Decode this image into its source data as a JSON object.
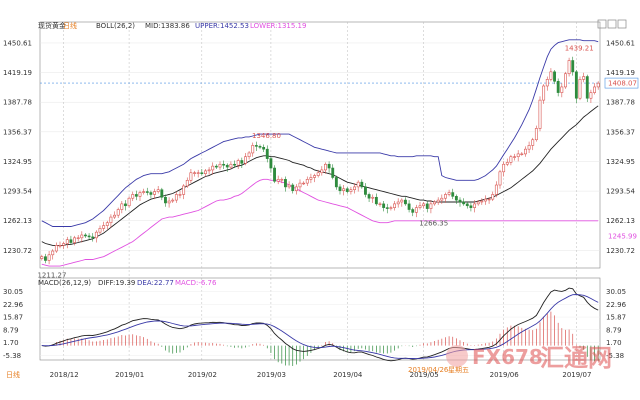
{
  "header": {
    "instrument": "现货黄金",
    "period_badge": "日线",
    "boll_label": "BOLL(26,2)",
    "mid_label": "MID:1383.86",
    "upper_label": "UPPER:1452.53",
    "lower_label": "LOWER:1315.19",
    "macd_label": "MACD(26,12,9)",
    "diff_label": "DIFF:19.39",
    "dea_label": "DEA:22.77",
    "macd_value_label": "MACD:-6.76",
    "footer_period": "日线",
    "hover_date": "2019/04/26",
    "hover_weekday": "星期五"
  },
  "watermark": {
    "code": "FX678",
    "name": "汇通网"
  },
  "colors": {
    "up": "#d9534f",
    "down": "#2e8b3d",
    "mid": "#222222",
    "upper": "#3a3aa8",
    "lower": "#e050e0",
    "diff": "#222222",
    "dea": "#3a3aa8",
    "last_price": "#4a90e2",
    "annotation": "#d9534f"
  },
  "chart_data": {
    "type": "candlestick",
    "y_ticks": [
      "1450.61",
      "1419.19",
      "1387.78",
      "1356.37",
      "1324.95",
      "1293.54",
      "1262.13",
      "1230.72"
    ],
    "y_range": [
      1212,
      1458
    ],
    "macd_ticks": [
      "30.05",
      "22.96",
      "15.87",
      "8.79",
      "1.70",
      "-5.38"
    ],
    "macd_range": [
      -8,
      32
    ],
    "x_labels": [
      {
        "label": "2018/12",
        "i": 6
      },
      {
        "label": "2019/01",
        "i": 24
      },
      {
        "label": "2019/02",
        "i": 44
      },
      {
        "label": "2019/03",
        "i": 63
      },
      {
        "label": "2019/04",
        "i": 84
      },
      {
        "label": "2019/05",
        "i": 105
      },
      {
        "label": "2019/06",
        "i": 127
      },
      {
        "label": "2019/07",
        "i": 147
      }
    ],
    "annotations": {
      "high_1": "1439.21",
      "high_1_i": 146,
      "high_1_v": 1439.21,
      "high_2": "1346.80",
      "high_2_i": 60,
      "high_2_v": 1346.8,
      "low_1": "1266.35",
      "low_1_i": 106,
      "low_1_v": 1266.35,
      "low_2": "1211.27",
      "low_2_i": 1,
      "low_2_v": 1211.27
    },
    "last_price": "1408.07",
    "last_price_value": 1408.07,
    "lower_label_value": "1245.99",
    "lower_last_value": 1245.99,
    "close": [
      1224,
      1220,
      1226,
      1230,
      1236,
      1236,
      1238,
      1242,
      1239,
      1244,
      1244,
      1247,
      1246,
      1245,
      1244,
      1250,
      1254,
      1257,
      1260,
      1266,
      1268,
      1274,
      1280,
      1278,
      1286,
      1290,
      1288,
      1292,
      1293,
      1292,
      1290,
      1293,
      1295,
      1287,
      1281,
      1283,
      1284,
      1290,
      1290,
      1299,
      1305,
      1313,
      1313,
      1313,
      1312,
      1315,
      1316,
      1320,
      1319,
      1322,
      1321,
      1319,
      1322,
      1321,
      1326,
      1323,
      1330,
      1334,
      1342,
      1341,
      1340,
      1338,
      1328,
      1318,
      1304,
      1306,
      1306,
      1298,
      1300,
      1294,
      1298,
      1302,
      1302,
      1306,
      1308,
      1310,
      1313,
      1316,
      1322,
      1318,
      1308,
      1298,
      1294,
      1296,
      1293,
      1295,
      1298,
      1303,
      1298,
      1290,
      1286,
      1287,
      1280,
      1280,
      1276,
      1275,
      1276,
      1280,
      1282,
      1284,
      1280,
      1274,
      1271,
      1276,
      1278,
      1280,
      1275,
      1280,
      1282,
      1284,
      1286,
      1290,
      1292,
      1288,
      1284,
      1282,
      1280,
      1278,
      1276,
      1280,
      1282,
      1283,
      1285,
      1285,
      1290,
      1300,
      1314,
      1322,
      1324,
      1330,
      1330,
      1333,
      1333,
      1338,
      1342,
      1348,
      1360,
      1390,
      1405,
      1412,
      1420,
      1410,
      1398,
      1404,
      1418,
      1432,
      1420,
      1392,
      1412,
      1415,
      1392,
      1398,
      1404,
      1408
    ],
    "volume": [],
    "mid": [
      1240,
      1238,
      1237,
      1236,
      1236,
      1236,
      1236,
      1237,
      1237,
      1238,
      1239,
      1240,
      1241,
      1242,
      1243,
      1245,
      1247,
      1249,
      1252,
      1255,
      1258,
      1261,
      1264,
      1267,
      1270,
      1273,
      1276,
      1279,
      1281,
      1283,
      1285,
      1286,
      1287,
      1288,
      1289,
      1290,
      1291,
      1293,
      1295,
      1297,
      1299,
      1301,
      1303,
      1305,
      1307,
      1309,
      1310,
      1312,
      1313,
      1314,
      1315,
      1316,
      1317,
      1319,
      1320,
      1321,
      1323,
      1325,
      1327,
      1329,
      1330,
      1331,
      1331,
      1330,
      1330,
      1329,
      1328,
      1327,
      1326,
      1324,
      1323,
      1322,
      1321,
      1319,
      1318,
      1316,
      1315,
      1314,
      1313,
      1312,
      1311,
      1309,
      1307,
      1305,
      1303,
      1302,
      1301,
      1300,
      1299,
      1298,
      1297,
      1296,
      1295,
      1294,
      1293,
      1292,
      1291,
      1290,
      1289,
      1288,
      1288,
      1287,
      1286,
      1285,
      1284,
      1284,
      1283,
      1283,
      1282,
      1282,
      1282,
      1282,
      1282,
      1282,
      1282,
      1282,
      1282,
      1282,
      1282,
      1282,
      1283,
      1284,
      1285,
      1286,
      1287,
      1289,
      1291,
      1293,
      1295,
      1297,
      1300,
      1303,
      1306,
      1309,
      1312,
      1315,
      1319,
      1323,
      1328,
      1333,
      1338,
      1342,
      1346,
      1350,
      1354,
      1358,
      1361,
      1364,
      1368,
      1372,
      1375,
      1378,
      1381,
      1384
    ],
    "upper": [
      1262,
      1260,
      1258,
      1256,
      1256,
      1256,
      1256,
      1256,
      1256,
      1257,
      1258,
      1259,
      1260,
      1262,
      1264,
      1267,
      1270,
      1273,
      1277,
      1281,
      1285,
      1289,
      1293,
      1297,
      1300,
      1303,
      1306,
      1308,
      1310,
      1311,
      1312,
      1312,
      1312,
      1312,
      1313,
      1314,
      1316,
      1318,
      1320,
      1322,
      1325,
      1328,
      1330,
      1332,
      1334,
      1336,
      1338,
      1340,
      1342,
      1344,
      1346,
      1347,
      1348,
      1349,
      1350,
      1350,
      1351,
      1351,
      1352,
      1353,
      1354,
      1354,
      1354,
      1354,
      1354,
      1354,
      1354,
      1354,
      1354,
      1352,
      1350,
      1348,
      1346,
      1344,
      1342,
      1340,
      1339,
      1338,
      1337,
      1336,
      1335,
      1334,
      1334,
      1334,
      1334,
      1334,
      1334,
      1334,
      1334,
      1334,
      1334,
      1334,
      1334,
      1334,
      1333,
      1332,
      1331,
      1331,
      1330,
      1330,
      1330,
      1330,
      1330,
      1331,
      1331,
      1331,
      1331,
      1331,
      1330,
      1330,
      1310,
      1308,
      1307,
      1306,
      1305,
      1305,
      1305,
      1305,
      1305,
      1305,
      1306,
      1308,
      1310,
      1313,
      1316,
      1320,
      1326,
      1332,
      1338,
      1344,
      1350,
      1357,
      1364,
      1372,
      1380,
      1390,
      1402,
      1414,
      1425,
      1436,
      1444,
      1448,
      1451,
      1452,
      1453,
      1454,
      1454,
      1454,
      1454,
      1453,
      1453,
      1453,
      1453,
      1452
    ],
    "lower": [
      1216,
      1215,
      1214,
      1214,
      1214,
      1214,
      1215,
      1216,
      1217,
      1218,
      1219,
      1220,
      1221,
      1221,
      1221,
      1222,
      1223,
      1224,
      1226,
      1228,
      1230,
      1232,
      1234,
      1236,
      1238,
      1240,
      1243,
      1246,
      1249,
      1252,
      1255,
      1258,
      1261,
      1264,
      1265,
      1266,
      1266,
      1267,
      1268,
      1269,
      1270,
      1271,
      1272,
      1273,
      1275,
      1277,
      1279,
      1281,
      1283,
      1284,
      1284,
      1285,
      1286,
      1288,
      1289,
      1291,
      1294,
      1297,
      1300,
      1303,
      1305,
      1306,
      1306,
      1305,
      1305,
      1304,
      1303,
      1302,
      1300,
      1298,
      1296,
      1294,
      1292,
      1290,
      1288,
      1286,
      1284,
      1283,
      1282,
      1281,
      1280,
      1279,
      1278,
      1277,
      1276,
      1274,
      1272,
      1270,
      1268,
      1266,
      1264,
      1262,
      1261,
      1260,
      1260,
      1260,
      1261,
      1262,
      1262,
      1262,
      1262,
      1262,
      1262,
      1262,
      1262,
      1262,
      1262,
      1262,
      1262,
      1262,
      1262,
      1262,
      1262,
      1262,
      1262,
      1262,
      1262,
      1262,
      1262,
      1262,
      1262,
      1262,
      1262,
      1262,
      1262,
      1262,
      1262,
      1262,
      1262,
      1262,
      1262,
      1262,
      1262,
      1262,
      1262,
      1262,
      1262,
      1262,
      1262,
      1262,
      1262,
      1262,
      1262,
      1262,
      1262,
      1262,
      1262,
      1262,
      1262,
      1262,
      1262,
      1262,
      1262,
      1262
    ]
  }
}
